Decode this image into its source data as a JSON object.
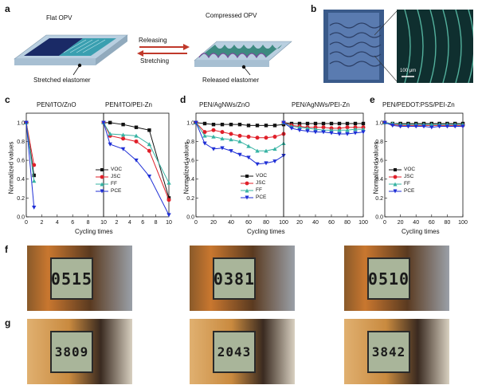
{
  "panel_labels": {
    "a": "a",
    "b": "b",
    "c": "c",
    "d": "d",
    "e": "e",
    "f": "f",
    "g": "g"
  },
  "panel_a": {
    "flat_label": "Flat OPV",
    "compressed_label": "Compressed OPV",
    "releasing": "Releasing",
    "stretching": "Stretching",
    "stretched": "Stretched elastomer",
    "released": "Released elastomer"
  },
  "panel_b": {
    "scalebar": "100 μm"
  },
  "legend": {
    "voc": "VOC",
    "jsc": "JSC",
    "ff": "FF",
    "pce": "PCE"
  },
  "axis": {
    "ylabel": "Normalized values",
    "xlabel": "Cycling times"
  },
  "colors": {
    "voc": "#111111",
    "jsc": "#e0202a",
    "ff": "#36b3a3",
    "pce": "#1f2fd6"
  },
  "chart_data": [
    {
      "type": "line",
      "title": "PEN/ITO/ZnO",
      "xlabel": "Cycling times",
      "ylabel": "Normalized values",
      "xlim": [
        0,
        10
      ],
      "ylim": [
        0.0,
        1.1
      ],
      "xticks": [
        0,
        2,
        4,
        6,
        8,
        10
      ],
      "yticks": [
        0.0,
        0.2,
        0.4,
        0.6,
        0.8,
        1.0
      ],
      "series": [
        {
          "name": "VOC",
          "x": [
            0,
            1
          ],
          "y": [
            1.0,
            0.44
          ]
        },
        {
          "name": "JSC",
          "x": [
            0,
            1
          ],
          "y": [
            1.0,
            0.55
          ]
        },
        {
          "name": "FF",
          "x": [
            0,
            1
          ],
          "y": [
            1.0,
            0.38
          ]
        },
        {
          "name": "PCE",
          "x": [
            0,
            1
          ],
          "y": [
            1.0,
            0.1
          ]
        }
      ]
    },
    {
      "type": "line",
      "title": "PEN/ITO/PEI-Zn",
      "xlabel": "Cycling times",
      "xlim": [
        0,
        10
      ],
      "ylim": [
        0.0,
        1.1
      ],
      "xticks": [
        0,
        2,
        4,
        6,
        8,
        10
      ],
      "series": [
        {
          "name": "VOC",
          "x": [
            0,
            1,
            3,
            5,
            7,
            10
          ],
          "y": [
            1.0,
            1.0,
            0.98,
            0.95,
            0.92,
            0.2
          ]
        },
        {
          "name": "JSC",
          "x": [
            0,
            1,
            3,
            5,
            7,
            10
          ],
          "y": [
            1.0,
            0.86,
            0.83,
            0.8,
            0.7,
            0.18
          ]
        },
        {
          "name": "FF",
          "x": [
            0,
            1,
            3,
            5,
            7,
            10
          ],
          "y": [
            1.0,
            0.88,
            0.87,
            0.86,
            0.77,
            0.36
          ]
        },
        {
          "name": "PCE",
          "x": [
            0,
            1,
            3,
            5,
            7,
            10
          ],
          "y": [
            1.0,
            0.77,
            0.72,
            0.6,
            0.43,
            0.02
          ]
        }
      ]
    },
    {
      "type": "line",
      "title": "PEN/AgNWs/ZnO",
      "xlabel": "Cycling times",
      "ylabel": "Normalized values",
      "xlim": [
        0,
        100
      ],
      "ylim": [
        0.0,
        1.1
      ],
      "xticks": [
        0,
        20,
        40,
        60,
        80,
        100
      ],
      "yticks": [
        0.0,
        0.2,
        0.4,
        0.6,
        0.8,
        1.0
      ],
      "series": [
        {
          "name": "VOC",
          "x": [
            0,
            10,
            20,
            30,
            40,
            50,
            60,
            70,
            80,
            90,
            100
          ],
          "y": [
            1.0,
            0.99,
            0.98,
            0.98,
            0.98,
            0.98,
            0.97,
            0.97,
            0.97,
            0.97,
            0.98
          ]
        },
        {
          "name": "JSC",
          "x": [
            0,
            10,
            20,
            30,
            40,
            50,
            60,
            70,
            80,
            90,
            100
          ],
          "y": [
            1.0,
            0.9,
            0.92,
            0.9,
            0.88,
            0.86,
            0.85,
            0.84,
            0.84,
            0.85,
            0.88
          ]
        },
        {
          "name": "FF",
          "x": [
            0,
            10,
            20,
            30,
            40,
            50,
            60,
            70,
            80,
            90,
            100
          ],
          "y": [
            1.0,
            0.86,
            0.85,
            0.83,
            0.82,
            0.8,
            0.75,
            0.7,
            0.7,
            0.72,
            0.78
          ]
        },
        {
          "name": "PCE",
          "x": [
            0,
            10,
            20,
            30,
            40,
            50,
            60,
            70,
            80,
            90,
            100
          ],
          "y": [
            1.0,
            0.78,
            0.72,
            0.73,
            0.7,
            0.66,
            0.63,
            0.56,
            0.57,
            0.59,
            0.65
          ]
        }
      ]
    },
    {
      "type": "line",
      "title": "PEN/AgNWs/PEI-Zn",
      "xlabel": "Cycling times",
      "xlim": [
        0,
        100
      ],
      "ylim": [
        0.0,
        1.1
      ],
      "xticks": [
        0,
        20,
        40,
        60,
        80,
        100
      ],
      "series": [
        {
          "name": "VOC",
          "x": [
            0,
            10,
            20,
            30,
            40,
            50,
            60,
            70,
            80,
            90,
            100
          ],
          "y": [
            1.0,
            0.99,
            0.99,
            0.99,
            0.99,
            0.99,
            0.99,
            0.99,
            0.99,
            0.99,
            0.99
          ]
        },
        {
          "name": "JSC",
          "x": [
            0,
            10,
            20,
            30,
            40,
            50,
            60,
            70,
            80,
            90,
            100
          ],
          "y": [
            1.0,
            0.97,
            0.96,
            0.95,
            0.95,
            0.95,
            0.94,
            0.94,
            0.95,
            0.95,
            0.95
          ]
        },
        {
          "name": "FF",
          "x": [
            0,
            10,
            20,
            30,
            40,
            50,
            60,
            70,
            80,
            90,
            100
          ],
          "y": [
            1.0,
            0.96,
            0.95,
            0.94,
            0.93,
            0.92,
            0.92,
            0.92,
            0.92,
            0.93,
            0.93
          ]
        },
        {
          "name": "PCE",
          "x": [
            0,
            10,
            20,
            30,
            40,
            50,
            60,
            70,
            80,
            90,
            100
          ],
          "y": [
            1.0,
            0.94,
            0.92,
            0.91,
            0.9,
            0.9,
            0.89,
            0.88,
            0.88,
            0.89,
            0.9
          ]
        }
      ]
    },
    {
      "type": "line",
      "title": "PEN/PEDOT:PSS/PEI-Zn",
      "xlabel": "Cycling times",
      "ylabel": "Normalized values",
      "xlim": [
        0,
        100
      ],
      "ylim": [
        0.0,
        1.1
      ],
      "xticks": [
        0,
        20,
        40,
        60,
        80,
        100
      ],
      "yticks": [
        0.0,
        0.2,
        0.4,
        0.6,
        0.8,
        1.0
      ],
      "series": [
        {
          "name": "VOC",
          "x": [
            0,
            10,
            20,
            30,
            40,
            50,
            60,
            70,
            80,
            90,
            100
          ],
          "y": [
            1.0,
            0.99,
            0.99,
            0.99,
            0.99,
            0.99,
            0.99,
            0.99,
            0.99,
            0.99,
            0.99
          ]
        },
        {
          "name": "JSC",
          "x": [
            0,
            10,
            20,
            30,
            40,
            50,
            60,
            70,
            80,
            90,
            100
          ],
          "y": [
            1.0,
            0.98,
            0.97,
            0.97,
            0.97,
            0.97,
            0.97,
            0.97,
            0.97,
            0.97,
            0.97
          ]
        },
        {
          "name": "FF",
          "x": [
            0,
            10,
            20,
            30,
            40,
            50,
            60,
            70,
            80,
            90,
            100
          ],
          "y": [
            1.0,
            0.99,
            0.98,
            0.98,
            0.98,
            0.98,
            0.98,
            0.98,
            0.98,
            0.98,
            0.98
          ]
        },
        {
          "name": "PCE",
          "x": [
            0,
            10,
            20,
            30,
            40,
            50,
            60,
            70,
            80,
            90,
            100
          ],
          "y": [
            1.0,
            0.97,
            0.96,
            0.96,
            0.96,
            0.96,
            0.95,
            0.96,
            0.96,
            0.96,
            0.96
          ]
        }
      ]
    }
  ],
  "panel_f": {
    "readings": [
      "0515",
      "0381",
      "0510"
    ]
  },
  "panel_g": {
    "readings": [
      "3809",
      "2043",
      "3842"
    ]
  }
}
